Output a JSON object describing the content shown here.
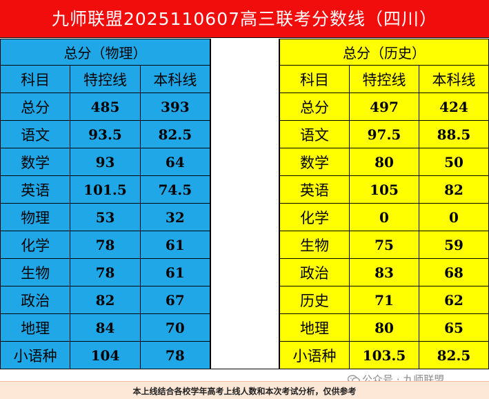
{
  "title": "九师联盟2025110607高三联考分数线（四川）",
  "left": {
    "header": "总分（物理）",
    "columns": [
      "科目",
      "特控线",
      "本科线"
    ],
    "rows": [
      [
        "总分",
        "485",
        "393"
      ],
      [
        "语文",
        "93.5",
        "82.5"
      ],
      [
        "数学",
        "93",
        "64"
      ],
      [
        "英语",
        "101.5",
        "74.5"
      ],
      [
        "物理",
        "53",
        "32"
      ],
      [
        "化学",
        "78",
        "61"
      ],
      [
        "生物",
        "78",
        "61"
      ],
      [
        "政治",
        "82",
        "67"
      ],
      [
        "地理",
        "84",
        "70"
      ],
      [
        "小语种",
        "104",
        "78"
      ]
    ]
  },
  "right": {
    "header": "总分（历史）",
    "columns": [
      "科目",
      "特控线",
      "本科线"
    ],
    "rows": [
      [
        "总分",
        "497",
        "424"
      ],
      [
        "语文",
        "97.5",
        "88.5"
      ],
      [
        "数学",
        "80",
        "50"
      ],
      [
        "英语",
        "105",
        "82"
      ],
      [
        "化学",
        "0",
        "0"
      ],
      [
        "生物",
        "75",
        "59"
      ],
      [
        "政治",
        "83",
        "68"
      ],
      [
        "历史",
        "71",
        "62"
      ],
      [
        "地理",
        "80",
        "65"
      ],
      [
        "小语种",
        "103.5",
        "82.5"
      ]
    ]
  },
  "footer": "本上线结合各校学年高考上线人数和本次考试分析，仅供参考",
  "watermark": "公众号 · 九师联盟",
  "colors": {
    "title_bg": "#f20d0d",
    "left_bg": "#1fa7e8",
    "right_bg": "#ffff00"
  },
  "icons": {
    "watermark": "wechat-icon"
  }
}
